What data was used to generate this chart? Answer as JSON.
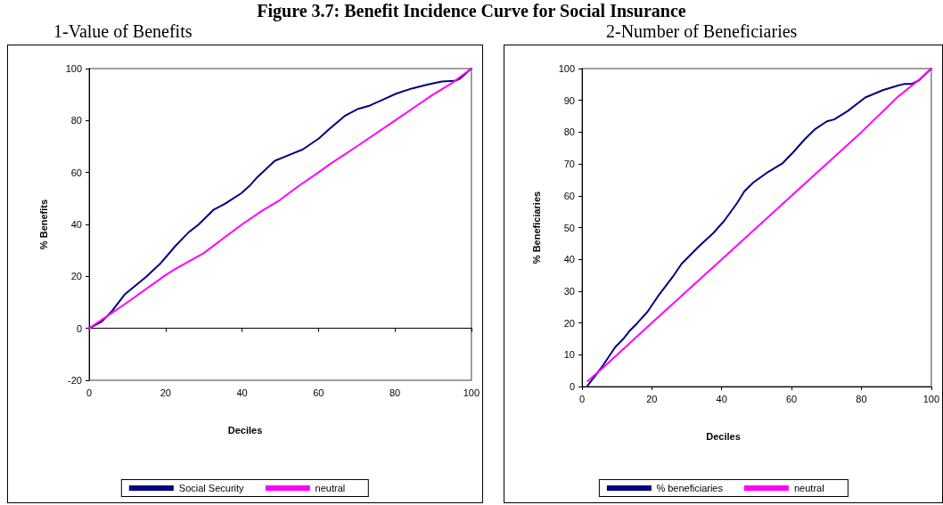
{
  "chart_data": [
    {
      "type": "line",
      "title": "Figure 3.7: Benefit Incidence Curve for Social Insurance",
      "subtitle": "1-Value of Benefits",
      "xlabel": "Deciles",
      "ylabel": "% Benefits",
      "xlim": [
        0,
        100
      ],
      "xticks": [
        0,
        20,
        40,
        60,
        80,
        100
      ],
      "ylim": [
        -20,
        100
      ],
      "yticks": [
        -20,
        0,
        20,
        40,
        60,
        80,
        100
      ],
      "legend": "bottom",
      "marker": "none",
      "line_style": "solid",
      "series": [
        {
          "name": "Social Security",
          "color": "#000080",
          "x": [
            0,
            3.3,
            6,
            9.4,
            14.8,
            18.6,
            22.5,
            25.9,
            28.6,
            32.5,
            35.5,
            39.8,
            42,
            44,
            48.6,
            52.4,
            55.9,
            60.1,
            62.8,
            67,
            70.4,
            73.5,
            77,
            80.4,
            84.6,
            88.5,
            92.3,
            95.8,
            96.9,
            100
          ],
          "values": [
            0,
            2.6,
            6.7,
            13.2,
            19.7,
            24.9,
            31.6,
            36.8,
            39.9,
            45.6,
            47.9,
            52,
            54.9,
            58.2,
            64.5,
            66.8,
            68.9,
            73.1,
            76.7,
            81.9,
            84.5,
            85.8,
            88.1,
            90.4,
            92.4,
            93.8,
            95,
            95.3,
            96,
            100
          ]
        },
        {
          "name": "neutral",
          "color": "#ff00ff",
          "x": [
            0,
            5,
            10,
            20,
            22.5,
            30,
            35,
            40,
            45,
            50,
            55,
            60,
            62.8,
            70,
            80,
            85,
            90,
            95,
            100
          ],
          "values": [
            0,
            5,
            10,
            20.5,
            22.8,
            29,
            34.5,
            40,
            45,
            49.5,
            55,
            60,
            63,
            70,
            80,
            85,
            90,
            94.5,
            100
          ]
        }
      ]
    },
    {
      "type": "line",
      "subtitle": "2-Number of Beneficiaries",
      "xlabel": "Deciles",
      "ylabel": "% Beneficiaries",
      "xlim": [
        0,
        100
      ],
      "xticks": [
        0,
        20,
        40,
        60,
        80,
        100
      ],
      "ylim": [
        0,
        100
      ],
      "yticks": [
        0,
        10,
        20,
        30,
        40,
        50,
        60,
        70,
        80,
        90,
        100
      ],
      "legend": "bottom",
      "marker": "none",
      "line_style": "solid",
      "series": [
        {
          "name": "% beneficiaries",
          "color": "#000080",
          "x": [
            1.6,
            3.6,
            6.1,
            9.5,
            12,
            13.7,
            15.8,
            18.8,
            21.7,
            25.9,
            28.5,
            33.1,
            37.7,
            40.7,
            44.4,
            46.5,
            49.1,
            53.3,
            57.5,
            60.4,
            63.8,
            66.8,
            70.1,
            72.2,
            76,
            81.1,
            86.1,
            90.3,
            92.4,
            94.5,
            96.6,
            100
          ],
          "values": [
            0.3,
            3.1,
            6.8,
            12.4,
            15.2,
            17.6,
            19.9,
            23.6,
            28.3,
            34.4,
            38.6,
            43.7,
            48.4,
            52.1,
            57.7,
            61.4,
            64.2,
            67.5,
            70.3,
            73.6,
            77.8,
            81,
            83.4,
            84,
            86.6,
            90.9,
            93.2,
            94.6,
            95.2,
            95.2,
            96.4,
            100
          ]
        },
        {
          "name": "neutral",
          "color": "#ff00ff",
          "x": [
            1.6,
            6.1,
            20,
            40,
            60,
            80,
            86.1,
            90.3,
            96,
            100
          ],
          "values": [
            1.7,
            6,
            20,
            40,
            60,
            80,
            86.5,
            91,
            96,
            100
          ]
        }
      ]
    }
  ]
}
